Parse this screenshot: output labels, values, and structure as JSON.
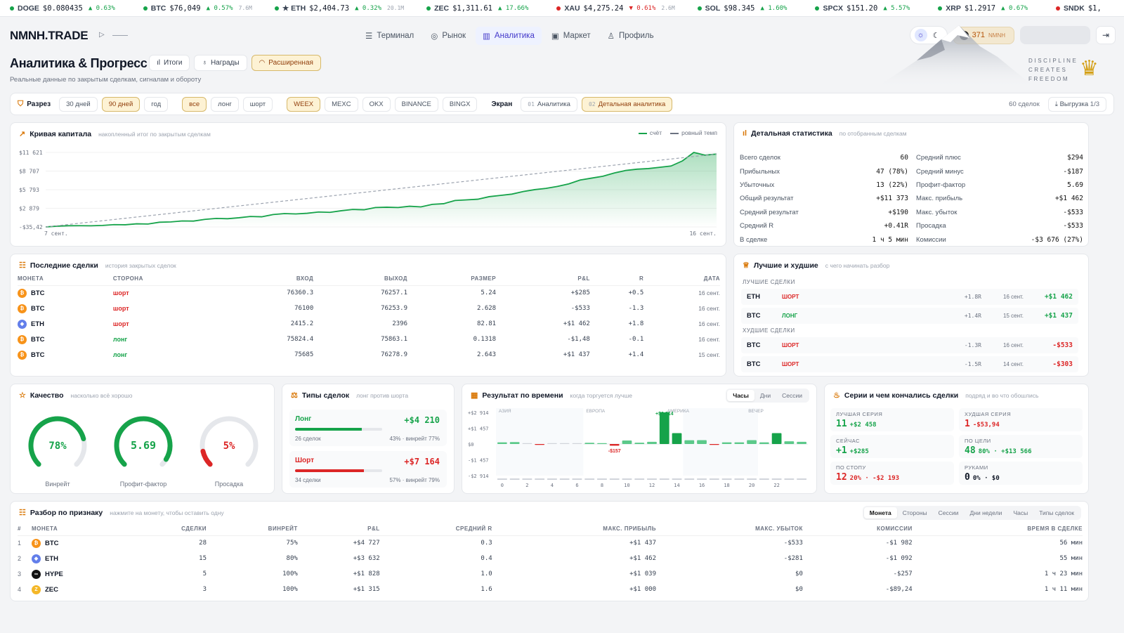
{
  "ticker": [
    {
      "sym": "DOGE",
      "price": "$0.080435",
      "chg": "▲ 0.63%",
      "vol": "",
      "up": true,
      "dot": "#16a34a"
    },
    {
      "sym": "BTC",
      "price": "$76,049",
      "chg": "▲ 0.57%",
      "vol": "7.6M",
      "up": true,
      "dot": "#16a34a"
    },
    {
      "sym": "★ ETH",
      "price": "$2,404.73",
      "chg": "▲ 0.32%",
      "vol": "20.1M",
      "up": true,
      "dot": "#16a34a"
    },
    {
      "sym": "ZEC",
      "price": "$1,311.61",
      "chg": "▲ 17.66%",
      "vol": "",
      "up": true,
      "dot": "#16a34a"
    },
    {
      "sym": "XAU",
      "price": "$4,275.24",
      "chg": "▼ 0.61%",
      "vol": "2.6M",
      "up": false,
      "dot": "#dc2626"
    },
    {
      "sym": "SOL",
      "price": "$98.345",
      "chg": "▲ 1.60%",
      "vol": "",
      "up": true,
      "dot": "#16a34a"
    },
    {
      "sym": "SPCX",
      "price": "$151.20",
      "chg": "▲ 5.57%",
      "vol": "",
      "up": true,
      "dot": "#16a34a"
    },
    {
      "sym": "XRP",
      "price": "$1.2917",
      "chg": "▲ 0.67%",
      "vol": "",
      "up": true,
      "dot": "#16a34a"
    },
    {
      "sym": "SNDK",
      "price": "$1,",
      "chg": "",
      "vol": "",
      "up": true,
      "dot": "#dc2626"
    }
  ],
  "header": {
    "logo": "NMNH.TRADE",
    "nav": [
      "Терминал",
      "Рынок",
      "Аналитика",
      "Маркет",
      "Профиль"
    ],
    "coins": "371",
    "coins_unit": "NMNH"
  },
  "page": {
    "title": "Аналитика & Прогресс",
    "subtitle": "Реальные данные по закрытым сделкам, сигналам и обороту",
    "tabs": [
      "Итоги",
      "Награды",
      "Расширенная"
    ],
    "motto": [
      "DISCIPLINE",
      "CREATES",
      "FREEDOM"
    ]
  },
  "filters": {
    "label": "Разрез",
    "periods": [
      "30 дней",
      "90 дней",
      "год"
    ],
    "sides": [
      "все",
      "лонг",
      "шорт"
    ],
    "exchanges": [
      "WEEX",
      "MEXC",
      "OKX",
      "BINANCE",
      "BINGX"
    ],
    "screen_label": "Экран",
    "screens": [
      {
        "num": "01",
        "label": "Аналитика"
      },
      {
        "num": "02",
        "label": "Детальная аналитика"
      }
    ],
    "count": "60 сделок",
    "export": "Выгрузка",
    "export_page": "1/3"
  },
  "equity": {
    "title": "Кривая капитала",
    "sub": "накопленный итог по закрытым сделкам",
    "legend_a": "счёт",
    "legend_b": "ровный темп",
    "yticks": [
      "$11 621",
      "$8 707",
      "$5 793",
      "$2 879",
      "-$35,42"
    ],
    "xstart": "7 сент.",
    "xend": "16 сент."
  },
  "chart_data": {
    "type": "area",
    "title": "Кривая капитала",
    "xlabel": "",
    "ylabel": "",
    "ylim": [
      -35.42,
      11621
    ],
    "x_range": [
      "7 сент.",
      "16 сент."
    ],
    "series": [
      {
        "name": "счёт",
        "values": [
          -35,
          80,
          150,
          160,
          140,
          200,
          320,
          300,
          450,
          420,
          700,
          750,
          900,
          880,
          1150,
          1300,
          1250,
          1400,
          1600,
          1550,
          1900,
          2050,
          2000,
          2100,
          2300,
          2250,
          2500,
          2700,
          2650,
          3000,
          3050,
          3000,
          3200,
          3100,
          3500,
          3600,
          4100,
          4200,
          4300,
          4700,
          4900,
          5100,
          5500,
          5800,
          6000,
          6300,
          6700,
          7300,
          7600,
          7900,
          8400,
          8800,
          9000,
          9100,
          9300,
          9500,
          10300,
          11621,
          11200,
          11373
        ]
      },
      {
        "name": "ровный темп",
        "values": [
          -35,
          11373
        ]
      }
    ]
  },
  "stats": {
    "title": "Детальная статистика",
    "sub": "по отобранным сделкам",
    "left": [
      {
        "k": "Всего сделок",
        "v": "60",
        "c": ""
      },
      {
        "k": "Прибыльных",
        "v": "47 (78%)",
        "c": "g"
      },
      {
        "k": "Убыточных",
        "v": "13 (22%)",
        "c": "r"
      },
      {
        "k": "Общий результат",
        "v": "+$11 373",
        "c": "g"
      },
      {
        "k": "Средний результат",
        "v": "+$190",
        "c": "g"
      },
      {
        "k": "Средний R",
        "v": "+0.41R",
        "c": "g"
      },
      {
        "k": "В сделке",
        "v": "1 ч 5 мин",
        "c": ""
      }
    ],
    "right": [
      {
        "k": "Средний плюс",
        "v": "$294",
        "c": "g"
      },
      {
        "k": "Средний минус",
        "v": "-$187",
        "c": "r"
      },
      {
        "k": "Профит-фактор",
        "v": "5.69",
        "c": ""
      },
      {
        "k": "Макс. прибыль",
        "v": "+$1 462",
        "c": "g"
      },
      {
        "k": "Макс. убыток",
        "v": "-$533",
        "c": "r"
      },
      {
        "k": "Просадка",
        "v": "-$533",
        "c": "r"
      },
      {
        "k": "Комиссии",
        "v": "-$3 676 (27%)",
        "c": "r"
      }
    ]
  },
  "recent": {
    "title": "Последние сделки",
    "sub": "история закрытых сделок",
    "cols": [
      "МОНЕТА",
      "СТОРОНА",
      "ВХОД",
      "ВЫХОД",
      "РАЗМЕР",
      "P&L",
      "R",
      "ДАТА"
    ],
    "rows": [
      {
        "coin": "BTC",
        "side": "шорт",
        "in": "76360.3",
        "out": "76257.1",
        "size": "5.24",
        "pl": "+$285",
        "r": "+0.5",
        "date": "16 сент.",
        "plc": "g"
      },
      {
        "coin": "BTC",
        "side": "шорт",
        "in": "76100",
        "out": "76253.9",
        "size": "2.628",
        "pl": "-$533",
        "r": "-1.3",
        "date": "16 сент.",
        "plc": "r"
      },
      {
        "coin": "ETH",
        "side": "шорт",
        "in": "2415.2",
        "out": "2396",
        "size": "82.81",
        "pl": "+$1 462",
        "r": "+1.8",
        "date": "16 сент.",
        "plc": "g"
      },
      {
        "coin": "BTC",
        "side": "лонг",
        "in": "75824.4",
        "out": "75863.1",
        "size": "0.1318",
        "pl": "-$1,48",
        "r": "-0.1",
        "date": "16 сент.",
        "plc": "r"
      },
      {
        "coin": "BTC",
        "side": "лонг",
        "in": "75685",
        "out": "76278.9",
        "size": "2.643",
        "pl": "+$1 437",
        "r": "+1.4",
        "date": "15 сент.",
        "plc": "g"
      }
    ]
  },
  "bestworst": {
    "title": "Лучшие и худшие",
    "sub": "с чего начинать разбор",
    "best_label": "ЛУЧШИЕ СДЕЛКИ",
    "worst_label": "ХУДШИЕ СДЕЛКИ",
    "best": [
      {
        "coin": "ETH",
        "side": "ШОРТ",
        "r": "+1.8R",
        "date": "16 сент.",
        "pl": "+$1 462"
      },
      {
        "coin": "BTC",
        "side": "ЛОНГ",
        "r": "+1.4R",
        "date": "15 сент.",
        "pl": "+$1 437"
      }
    ],
    "worst": [
      {
        "coin": "BTC",
        "side": "ШОРТ",
        "r": "-1.3R",
        "date": "16 сент.",
        "pl": "-$533"
      },
      {
        "coin": "BTC",
        "side": "ШОРТ",
        "r": "-1.5R",
        "date": "14 сент.",
        "pl": "-$303"
      }
    ]
  },
  "quality": {
    "title": "Качество",
    "sub": "насколько всё хорошо",
    "gauges": [
      {
        "val": "78%",
        "label": "Винрейт",
        "frac": 0.78,
        "color": "#16a34a"
      },
      {
        "val": "5.69",
        "label": "Профит-фактор",
        "frac": 0.95,
        "color": "#16a34a"
      },
      {
        "val": "5%",
        "label": "Просадка",
        "frac": 0.12,
        "color": "#dc2626"
      }
    ]
  },
  "types": {
    "title": "Типы сделок",
    "sub": "лонг против шорта",
    "items": [
      {
        "name": "Лонг",
        "val": "+$4 210",
        "count": "26 сделок",
        "meta": "43% · винрейт 77%",
        "frac": 0.77,
        "color": "#16a34a"
      },
      {
        "name": "Шорт",
        "val": "+$7 164",
        "count": "34 сделки",
        "meta": "57% · винрейт 79%",
        "frac": 0.79,
        "color": "#dc2626"
      }
    ]
  },
  "timeres": {
    "title": "Результат по времени",
    "sub": "когда торгуется лучше",
    "tabs": [
      "Часы",
      "Дни",
      "Сессии"
    ],
    "yticks": [
      "+$2 914",
      "+$1 457",
      "$0",
      "-$1 457",
      "-$2 914"
    ],
    "sessions": [
      "АЗИЯ",
      "ЕВРОПА",
      "АМЕРИКА",
      "ВЕЧЕР"
    ],
    "xticks": [
      "0",
      "2",
      "4",
      "6",
      "8",
      "10",
      "12",
      "14",
      "16",
      "18",
      "20",
      "22"
    ],
    "max_label": "+$2 914",
    "min_label": "-$157",
    "values": [
      150,
      180,
      0,
      -40,
      0,
      0,
      0,
      110,
      80,
      -157,
      320,
      120,
      200,
      2914,
      1000,
      350,
      360,
      -40,
      150,
      150,
      360,
      150,
      1000,
      250,
      200
    ]
  },
  "series": {
    "title": "Серии и чем кончались сделки",
    "sub": "подряд и во что обошлись",
    "boxes": [
      {
        "label": "ЛУЧШАЯ СЕРИЯ",
        "main": "11",
        "extra": "+$2 458",
        "c": "g"
      },
      {
        "label": "ХУДШАЯ СЕРИЯ",
        "main": "1",
        "extra": "-$53,94",
        "c": "r"
      },
      {
        "label": "СЕЙЧАС",
        "main": "+1",
        "extra": "+$285",
        "c": "g"
      },
      {
        "label": "ПО ЦЕЛИ",
        "main": "48",
        "extra": "80% · +$13 566",
        "c": "g"
      },
      {
        "label": "ПО СТОПУ",
        "main": "12",
        "extra": "20% · -$2 193",
        "c": "r"
      },
      {
        "label": "РУКАМИ",
        "main": "0",
        "extra": "0% · $0",
        "c": ""
      }
    ]
  },
  "breakdown": {
    "title": "Разбор по признаку",
    "sub": "нажмите на монету, чтобы оставить одну",
    "tabs": [
      "Монета",
      "Стороны",
      "Сессии",
      "Дни недели",
      "Часы",
      "Типы сделок"
    ],
    "cols": [
      "#",
      "МОНЕТА",
      "СДЕЛКИ",
      "ВИНРЕЙТ",
      "P&L",
      "СРЕДНИЙ R",
      "МАКС. ПРИБЫЛЬ",
      "МАКС. УБЫТОК",
      "КОМИССИИ",
      "ВРЕМЯ В СДЕЛКЕ"
    ],
    "rows": [
      {
        "n": "1",
        "coin": "BTC",
        "deals": "28",
        "wr": "75%",
        "pl": "+$4 727",
        "r": "0.3",
        "mp": "+$1 437",
        "ml": "-$533",
        "fee": "-$1 982",
        "time": "56 мин"
      },
      {
        "n": "2",
        "coin": "ETH",
        "deals": "15",
        "wr": "80%",
        "pl": "+$3 632",
        "r": "0.4",
        "mp": "+$1 462",
        "ml": "-$281",
        "fee": "-$1 092",
        "time": "55 мин"
      },
      {
        "n": "3",
        "coin": "HYPE",
        "deals": "5",
        "wr": "100%",
        "pl": "+$1 828",
        "r": "1.0",
        "mp": "+$1 039",
        "ml": "$0",
        "fee": "-$257",
        "time": "1 ч 23 мин"
      },
      {
        "n": "4",
        "coin": "ZEC",
        "deals": "3",
        "wr": "100%",
        "pl": "+$1 315",
        "r": "1.6",
        "mp": "+$1 000",
        "ml": "$0",
        "fee": "-$89,24",
        "time": "1 ч 11 мин"
      }
    ]
  },
  "colors": {
    "green": "#16a34a",
    "red": "#dc2626",
    "accent": "#d97706",
    "btc": "#f7931a",
    "eth": "#627eea",
    "hype": "#111111",
    "zec": "#f4b728"
  }
}
